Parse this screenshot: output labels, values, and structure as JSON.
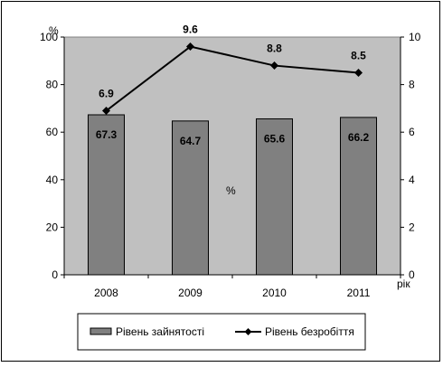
{
  "chart_data": {
    "type": "bar+line",
    "categories": [
      "2008",
      "2009",
      "2010",
      "2011"
    ],
    "xlabel": "рік",
    "series": [
      {
        "name": "Рівень зайнятості",
        "type": "bar",
        "axis": "left",
        "values": [
          67.3,
          64.7,
          65.6,
          66.2
        ],
        "labels": [
          "67.3",
          "64.7",
          "65.6",
          "66.2"
        ],
        "color": "#808080"
      },
      {
        "name": "Рівень безробіття",
        "type": "line",
        "axis": "right",
        "values": [
          6.9,
          9.6,
          8.8,
          8.5
        ],
        "labels": [
          "6.9",
          "9.6",
          "8.8",
          "8.5"
        ],
        "color": "#000000",
        "marker": "diamond"
      }
    ],
    "y_left": {
      "unit": "%",
      "ylim": [
        0,
        100
      ],
      "ticks": [
        "0",
        "20",
        "40",
        "60",
        "80",
        "100"
      ],
      "tick_values": [
        0,
        20,
        40,
        60,
        80,
        100
      ]
    },
    "y_right": {
      "ylim": [
        0,
        10
      ],
      "ticks": [
        "0",
        "2",
        "4",
        "6",
        "8",
        "10"
      ],
      "tick_values": [
        0,
        2,
        4,
        6,
        8,
        10
      ]
    },
    "annotations": [
      "%"
    ],
    "plot_background": "#c0c0c0",
    "grid": false,
    "legend_placement": "bottom"
  }
}
